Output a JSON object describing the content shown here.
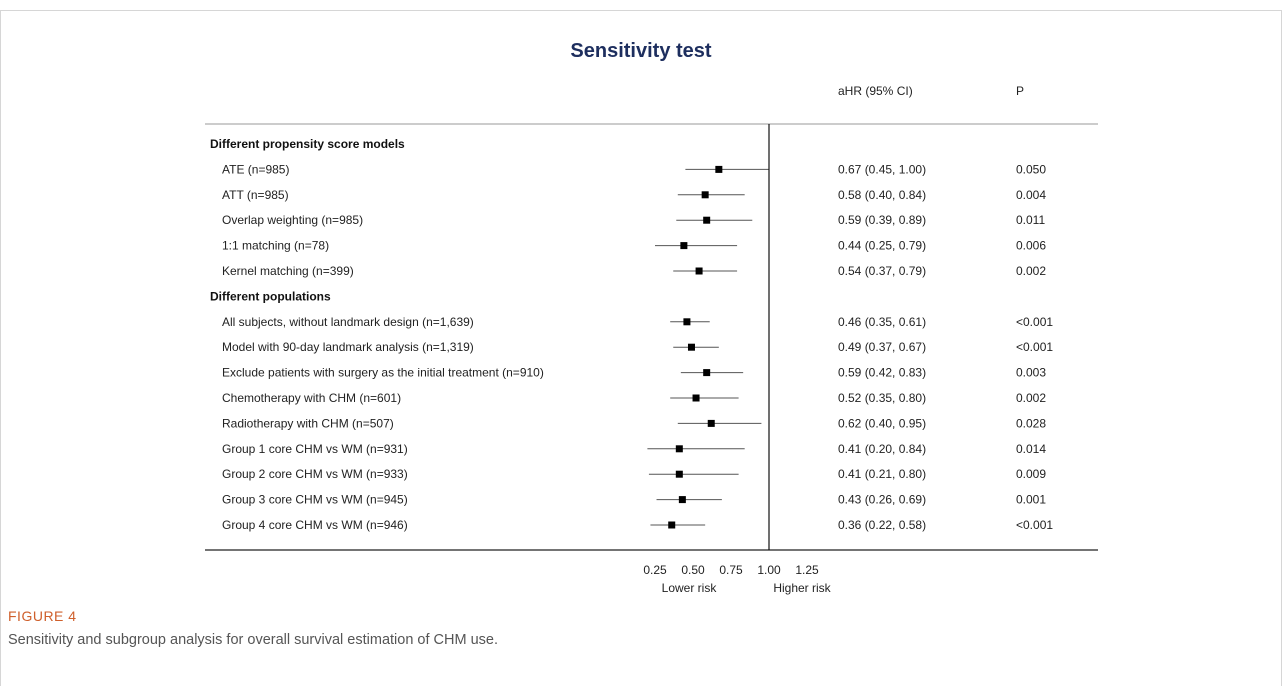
{
  "chart_data": {
    "type": "forest",
    "title": "Sensitivity test",
    "column_headers": {
      "estimate": "aHR (95% CI)",
      "p": "P"
    },
    "x_ticks": [
      "0.25",
      "0.50",
      "0.75",
      "1.00",
      "1.25"
    ],
    "x_tick_values": [
      0.25,
      0.5,
      0.75,
      1.0,
      1.25
    ],
    "xlim": [
      0.25,
      1.25
    ],
    "reference_line": 1.0,
    "direction_labels": {
      "left": "Lower risk",
      "right": "Higher risk"
    },
    "groups": [
      {
        "label": "Different propensity score models",
        "rows": [
          {
            "label": "ATE (n=985)",
            "hr": 0.67,
            "lo": 0.45,
            "hi": 1.0,
            "ci_text": "0.67 (0.45, 1.00)",
            "p": "0.050"
          },
          {
            "label": "ATT (n=985)",
            "hr": 0.58,
            "lo": 0.4,
            "hi": 0.84,
            "ci_text": "0.58 (0.40, 0.84)",
            "p": "0.004"
          },
          {
            "label": "Overlap weighting (n=985)",
            "hr": 0.59,
            "lo": 0.39,
            "hi": 0.89,
            "ci_text": "0.59 (0.39, 0.89)",
            "p": "0.011"
          },
          {
            "label": "1:1 matching (n=78)",
            "hr": 0.44,
            "lo": 0.25,
            "hi": 0.79,
            "ci_text": "0.44 (0.25, 0.79)",
            "p": "0.006"
          },
          {
            "label": "Kernel matching (n=399)",
            "hr": 0.54,
            "lo": 0.37,
            "hi": 0.79,
            "ci_text": "0.54 (0.37, 0.79)",
            "p": "0.002"
          }
        ]
      },
      {
        "label": "Different populations",
        "rows": [
          {
            "label": "All subjects, without landmark design (n=1,639)",
            "hr": 0.46,
            "lo": 0.35,
            "hi": 0.61,
            "ci_text": "0.46 (0.35, 0.61)",
            "p": "<0.001"
          },
          {
            "label": "Model with 90-day landmark analysis (n=1,319)",
            "hr": 0.49,
            "lo": 0.37,
            "hi": 0.67,
            "ci_text": "0.49 (0.37, 0.67)",
            "p": "<0.001"
          },
          {
            "label": "Exclude patients with surgery as the initial treatment (n=910)",
            "hr": 0.59,
            "lo": 0.42,
            "hi": 0.83,
            "ci_text": "0.59 (0.42, 0.83)",
            "p": "0.003"
          },
          {
            "label": "Chemotherapy with CHM (n=601)",
            "hr": 0.52,
            "lo": 0.35,
            "hi": 0.8,
            "ci_text": "0.52 (0.35, 0.80)",
            "p": "0.002"
          },
          {
            "label": "Radiotherapy with CHM (n=507)",
            "hr": 0.62,
            "lo": 0.4,
            "hi": 0.95,
            "ci_text": "0.62 (0.40, 0.95)",
            "p": "0.028"
          },
          {
            "label": "Group 1 core CHM vs WM (n=931)",
            "hr": 0.41,
            "lo": 0.2,
            "hi": 0.84,
            "ci_text": "0.41 (0.20, 0.84)",
            "p": "0.014"
          },
          {
            "label": "Group 2 core CHM vs WM (n=933)",
            "hr": 0.41,
            "lo": 0.21,
            "hi": 0.8,
            "ci_text": "0.41 (0.21, 0.80)",
            "p": "0.009"
          },
          {
            "label": "Group 3 core CHM vs WM (n=945)",
            "hr": 0.43,
            "lo": 0.26,
            "hi": 0.69,
            "ci_text": "0.43 (0.26, 0.69)",
            "p": "0.001"
          },
          {
            "label": "Group 4 core CHM vs WM (n=946)",
            "hr": 0.36,
            "lo": 0.22,
            "hi": 0.58,
            "ci_text": "0.36 (0.22, 0.58)",
            "p": "<0.001"
          }
        ]
      }
    ],
    "colors": {
      "title": "#1d2e5e",
      "marker": "#000000",
      "ci_line": "#555555",
      "caption_head": "#cf5f2b"
    }
  },
  "caption": {
    "label": "FIGURE 4",
    "text": "Sensitivity and subgroup analysis for overall survival estimation of CHM use."
  }
}
